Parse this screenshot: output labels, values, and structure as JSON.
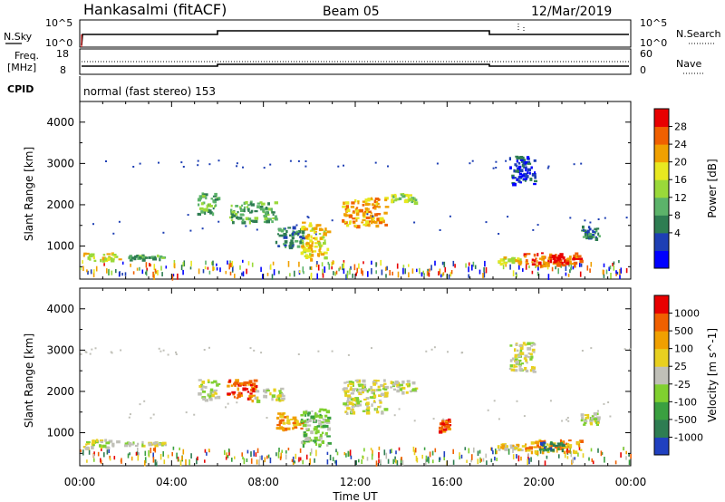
{
  "header": {
    "radar": "Hankasalmi (fitACF)",
    "beam": "Beam 05",
    "date": "12/Mar/2019"
  },
  "top_panels": {
    "nsky_label": "N.Sky",
    "nsky_ticks": [
      "10^5",
      "10^0"
    ],
    "nsearch_label": "N.Search",
    "nsearch_ticks": [
      "10^5",
      "10^0"
    ],
    "freq_label_1": "Freq.",
    "freq_label_2": "[MHz]",
    "freq_ticks": [
      "18",
      "8"
    ],
    "nave_label": "Nave",
    "nave_ticks": [
      "60",
      "0"
    ],
    "cpid_label": "CPID",
    "cpid_text": "normal (fast stereo) 153"
  },
  "x_axis": {
    "label": "Time UT",
    "ticks": [
      "00:00",
      "04:00",
      "08:00",
      "12:00",
      "16:00",
      "20:00",
      "00:00"
    ]
  },
  "chart_data": [
    {
      "type": "heatmap",
      "title": "Power",
      "ylabel": "Slant Range [km]",
      "xlabel": "Time UT",
      "xlim": [
        0,
        24
      ],
      "ylim": [
        200,
        4500
      ],
      "yticks": [
        "4000",
        "3000",
        "2000",
        "1000"
      ],
      "colorbar": {
        "label": "Power [dB]",
        "ticks": [
          "28",
          "24",
          "20",
          "16",
          "12",
          "8",
          "4"
        ],
        "colors": [
          "#0000ff",
          "#1e3fb4",
          "#2e7d52",
          "#5cb36a",
          "#9ad93a",
          "#e8e820",
          "#f0a000",
          "#f06000",
          "#e80000"
        ]
      },
      "regions": [
        {
          "t0": 0.1,
          "t1": 1.7,
          "r0": 650,
          "r1": 850,
          "level": 5
        },
        {
          "t0": 1.9,
          "t1": 3.7,
          "r0": 700,
          "r1": 800,
          "level": 3
        },
        {
          "t0": 5.1,
          "t1": 6.0,
          "r0": 1800,
          "r1": 2300,
          "level": 3
        },
        {
          "t0": 6.5,
          "t1": 8.5,
          "r0": 1600,
          "r1": 2100,
          "level": 3
        },
        {
          "t0": 8.5,
          "t1": 9.7,
          "r0": 1000,
          "r1": 1500,
          "level": 2
        },
        {
          "t0": 9.6,
          "t1": 10.8,
          "r0": 700,
          "r1": 1600,
          "level": 5
        },
        {
          "t0": 11.4,
          "t1": 13.3,
          "r0": 1500,
          "r1": 2200,
          "level": 6
        },
        {
          "t0": 13.5,
          "t1": 14.6,
          "r0": 2050,
          "r1": 2300,
          "level": 4
        },
        {
          "t0": 18.1,
          "t1": 19.2,
          "r0": 600,
          "r1": 750,
          "level": 5
        },
        {
          "t0": 19.3,
          "t1": 21.8,
          "r0": 550,
          "r1": 850,
          "level": 7
        },
        {
          "t0": 20.4,
          "t1": 21.2,
          "r0": 550,
          "r1": 800,
          "level": 8
        },
        {
          "t0": 18.7,
          "t1": 19.8,
          "r0": 2500,
          "r1": 3200,
          "level": 1
        },
        {
          "t0": 21.8,
          "t1": 22.6,
          "r0": 1200,
          "r1": 1500,
          "level": 2
        }
      ]
    },
    {
      "type": "heatmap",
      "title": "Velocity",
      "ylabel": "Slant Range [km]",
      "xlabel": "Time UT",
      "xlim": [
        0,
        24
      ],
      "ylim": [
        200,
        4500
      ],
      "yticks": [
        "4000",
        "3000",
        "2000",
        "1000"
      ],
      "colorbar": {
        "label": "Velocity [m s^-1]",
        "ticks": [
          "1000",
          "500",
          "100",
          "25",
          "-25",
          "-100",
          "-500",
          "-1000"
        ],
        "colors": [
          "#2040c0",
          "#2e7d52",
          "#3aa040",
          "#80d030",
          "#c0c0b8",
          "#e8d020",
          "#f0a000",
          "#f06000",
          "#e80000"
        ]
      },
      "regions": [
        {
          "t0": 0.1,
          "t1": 1.7,
          "r0": 650,
          "r1": 850,
          "level": 4
        },
        {
          "t0": 1.9,
          "t1": 3.7,
          "r0": 700,
          "r1": 800,
          "level": 4
        },
        {
          "t0": 5.1,
          "t1": 6.0,
          "r0": 1800,
          "r1": 2300,
          "level": 4
        },
        {
          "t0": 6.4,
          "t1": 7.6,
          "r0": 1800,
          "r1": 2300,
          "level": 7
        },
        {
          "t0": 7.6,
          "t1": 8.8,
          "r0": 1800,
          "r1": 2100,
          "level": 4
        },
        {
          "t0": 8.5,
          "t1": 9.7,
          "r0": 1100,
          "r1": 1500,
          "level": 6
        },
        {
          "t0": 9.6,
          "t1": 10.8,
          "r0": 700,
          "r1": 1600,
          "level": 3
        },
        {
          "t0": 11.4,
          "t1": 13.3,
          "r0": 1500,
          "r1": 2300,
          "level": 4
        },
        {
          "t0": 13.5,
          "t1": 14.6,
          "r0": 2000,
          "r1": 2300,
          "level": 4
        },
        {
          "t0": 15.6,
          "t1": 16.1,
          "r0": 1050,
          "r1": 1350,
          "level": 7
        },
        {
          "t0": 18.1,
          "t1": 19.3,
          "r0": 600,
          "r1": 750,
          "level": 5
        },
        {
          "t0": 19.3,
          "t1": 21.8,
          "r0": 550,
          "r1": 850,
          "level": 6
        },
        {
          "t0": 20.0,
          "t1": 21.0,
          "r0": 600,
          "r1": 800,
          "level": 1
        },
        {
          "t0": 18.7,
          "t1": 19.8,
          "r0": 2500,
          "r1": 3200,
          "level": 4
        },
        {
          "t0": 21.8,
          "t1": 22.6,
          "r0": 1200,
          "r1": 1500,
          "level": 4
        }
      ]
    }
  ]
}
